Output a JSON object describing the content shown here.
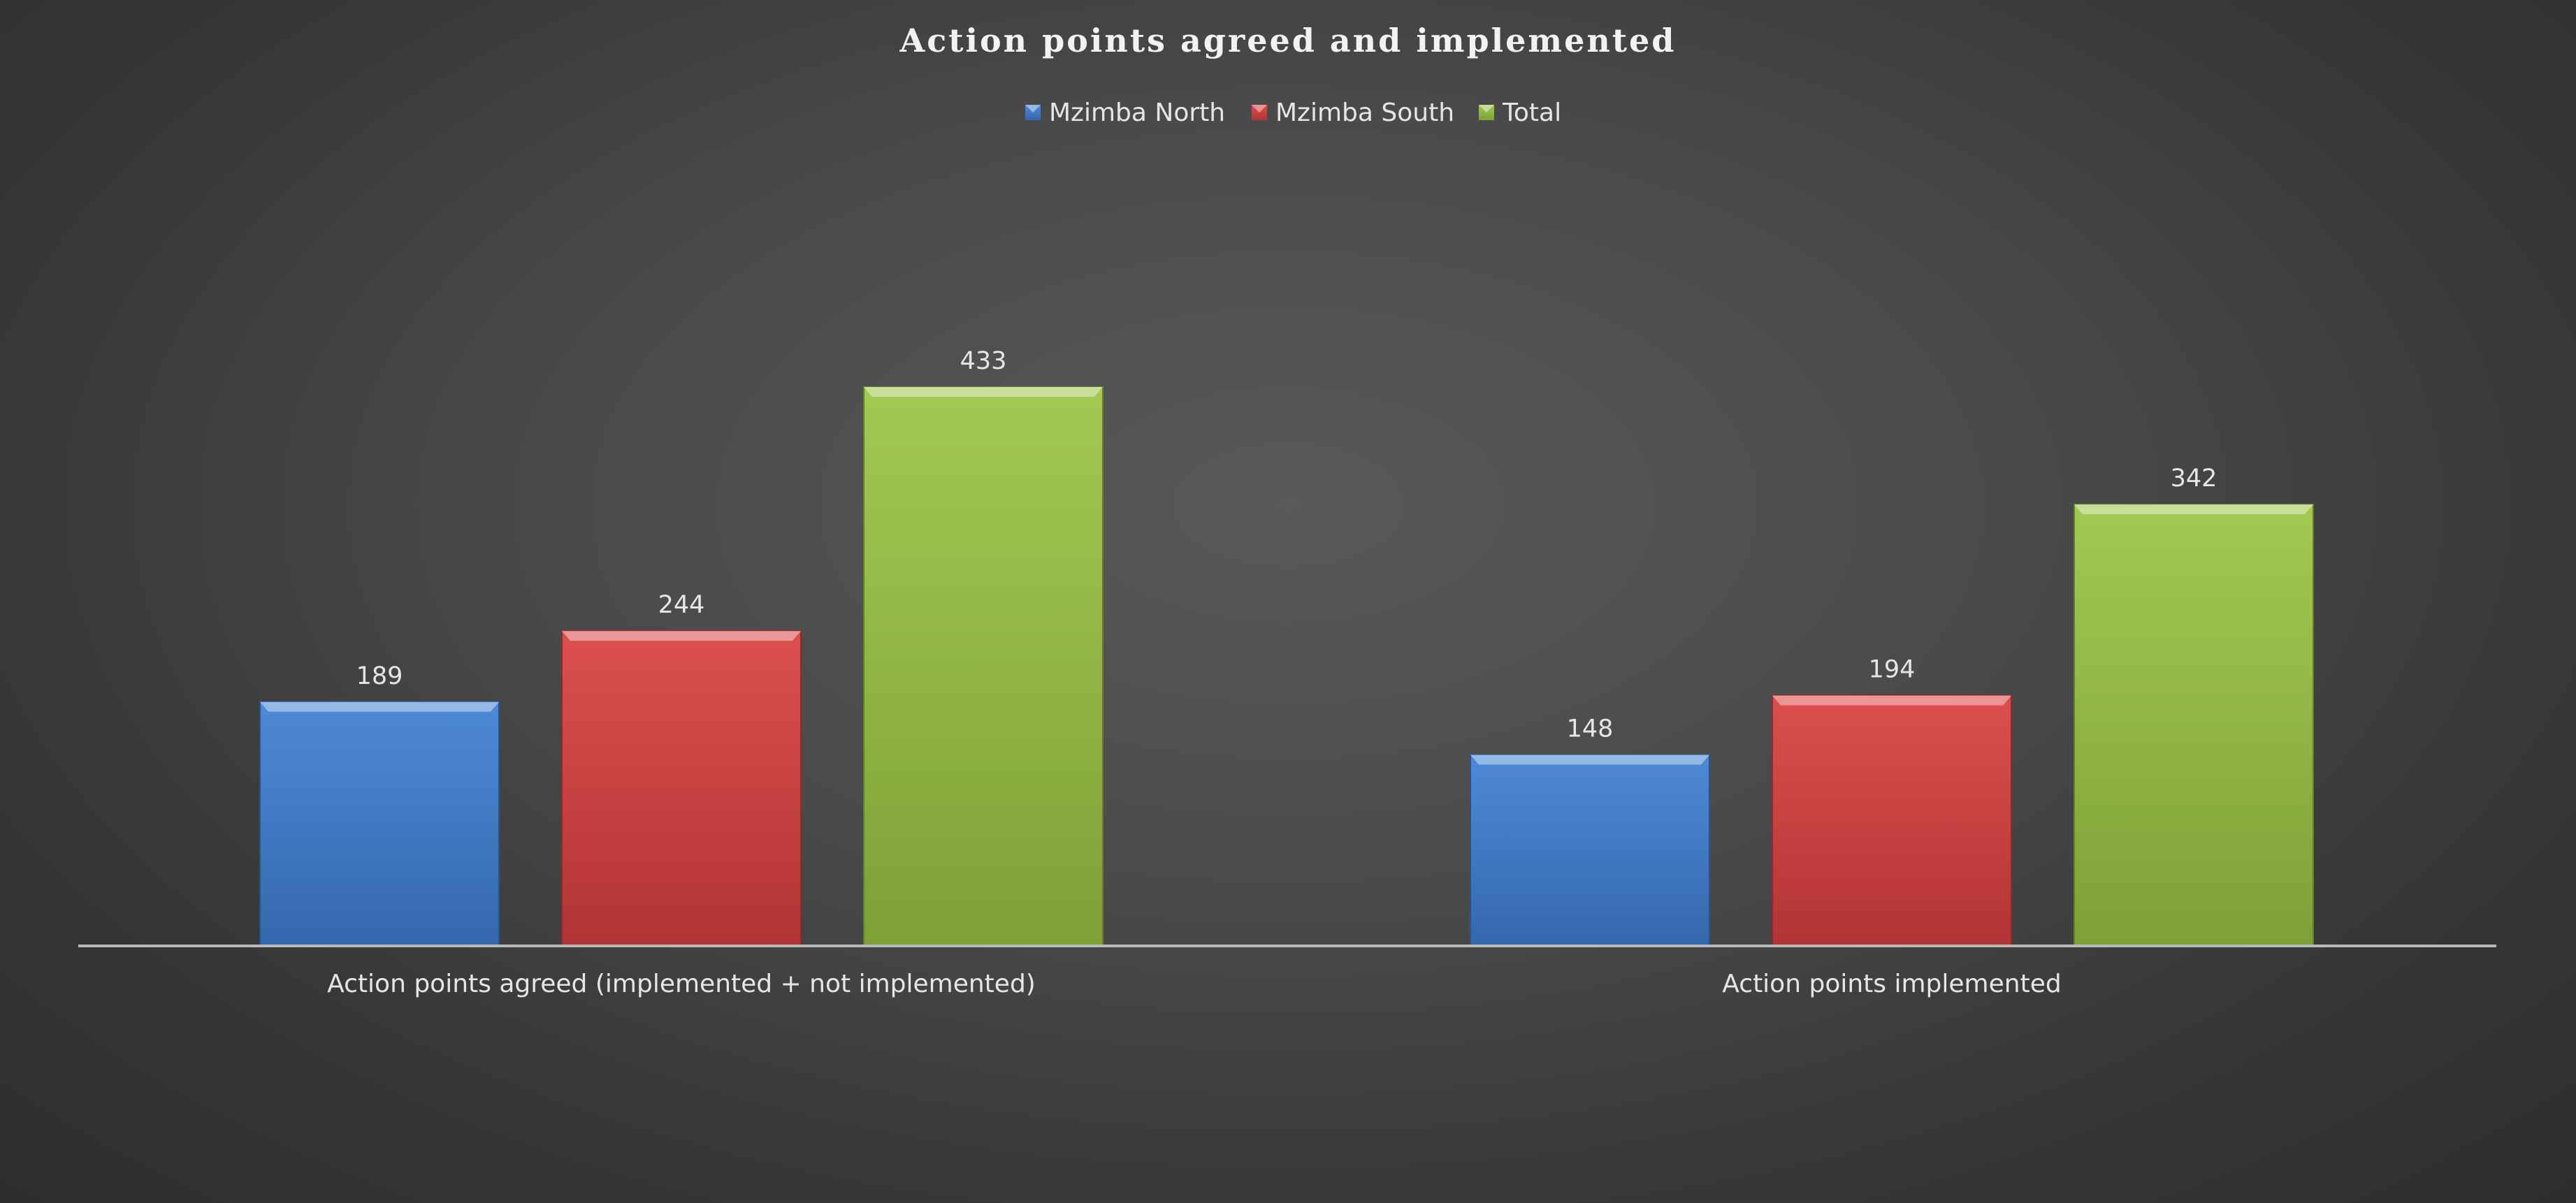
{
  "chart_data": {
    "type": "bar",
    "title": "Action points agreed and implemented",
    "categories": [
      "Action points agreed (implemented + not implemented)",
      "Action points implemented"
    ],
    "series": [
      {
        "name": "Mzimba North",
        "values": [
          189,
          148
        ],
        "color": "#3f7fd3"
      },
      {
        "name": "Mzimba South",
        "values": [
          244,
          194
        ],
        "color": "#d94040"
      },
      {
        "name": "Total",
        "values": [
          433,
          342
        ],
        "color": "#9ac443"
      }
    ],
    "ylim": [
      0,
      480
    ],
    "grid": false,
    "legend": "top-center",
    "data_labels": true
  }
}
